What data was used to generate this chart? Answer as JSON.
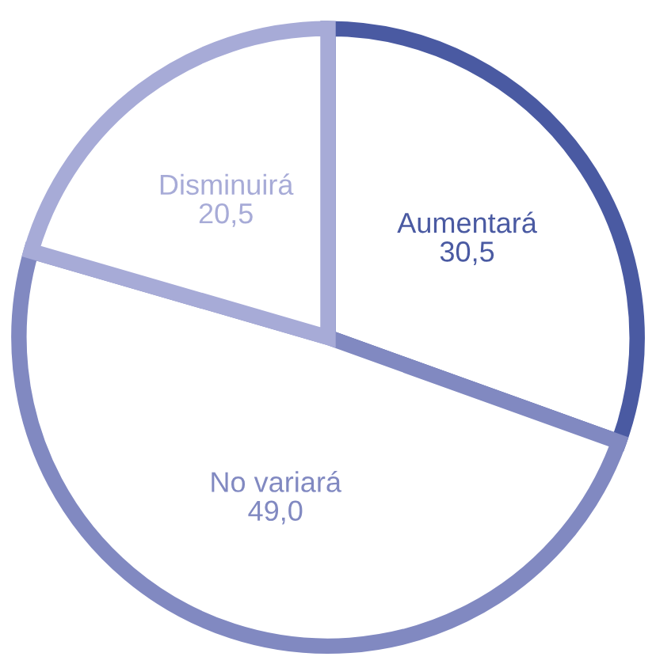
{
  "chart_data": {
    "type": "pie",
    "categories": [
      "Aumentará",
      "No variará",
      "Disminuirá"
    ],
    "values": [
      30.5,
      49.0,
      20.5
    ],
    "value_labels": [
      "30,5",
      "49,0",
      "20,5"
    ],
    "colors": [
      "#4a5aa2",
      "#8189c1",
      "#a7abd7"
    ]
  }
}
